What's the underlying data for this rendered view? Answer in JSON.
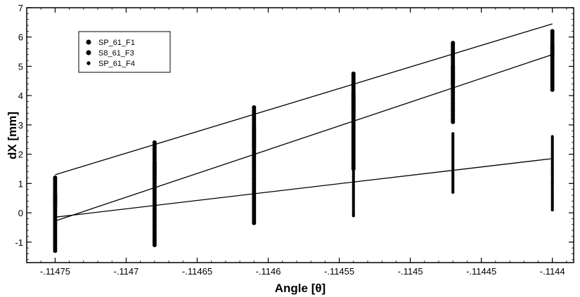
{
  "chart_data": {
    "type": "scatter",
    "title": "",
    "xlabel": "Angle [θ]",
    "ylabel": "dX [mm]",
    "xlim": [
      -0.11477,
      -0.114385
    ],
    "ylim": [
      -1.7,
      7
    ],
    "x_ticks": [
      -0.11475,
      -0.1147,
      -0.11465,
      -0.1146,
      -0.11455,
      -0.1145,
      -0.11445,
      -0.1144
    ],
    "x_tick_labels": [
      "-.11475",
      "-.1147",
      "-.11465",
      "-.1146",
      "-.11455",
      "-.1145",
      "-.11445",
      "-.1144"
    ],
    "y_ticks": [
      -1,
      0,
      1,
      2,
      3,
      4,
      5,
      6,
      7
    ],
    "y_tick_labels": [
      "-1",
      "0",
      "1",
      "2",
      "3",
      "4",
      "5",
      "6",
      "7"
    ],
    "grid": false,
    "legend_position": "top-left",
    "series": [
      {
        "name": "SP_61_F1",
        "marker": "circle",
        "ranges": [
          {
            "x": -0.11475,
            "min": 0.3,
            "max": 1.2
          },
          {
            "x": -0.11468,
            "min": 1.2,
            "max": 2.4
          },
          {
            "x": -0.11461,
            "min": 2.2,
            "max": 3.6
          },
          {
            "x": -0.11454,
            "min": 3.3,
            "max": 4.75
          },
          {
            "x": -0.11447,
            "min": 4.4,
            "max": 5.8
          },
          {
            "x": -0.1144,
            "min": 5.4,
            "max": 6.2
          }
        ],
        "fit": [
          {
            "x": -0.11475,
            "y": 1.3
          },
          {
            "x": -0.1144,
            "y": 6.45
          }
        ]
      },
      {
        "name": "S8_61_F3",
        "marker": "circle",
        "ranges": [
          {
            "x": -0.11475,
            "min": -1.3,
            "max": 0.6
          },
          {
            "x": -0.11468,
            "min": -1.1,
            "max": 1.7
          },
          {
            "x": -0.11461,
            "min": -0.35,
            "max": 2.9
          },
          {
            "x": -0.11454,
            "min": 1.5,
            "max": 4.1
          },
          {
            "x": -0.11447,
            "min": 3.1,
            "max": 5.0
          },
          {
            "x": -0.1144,
            "min": 4.2,
            "max": 5.7
          }
        ],
        "fit": [
          {
            "x": -0.11475,
            "y": -0.28
          },
          {
            "x": -0.1144,
            "y": 5.4
          }
        ]
      },
      {
        "name": "SP_61_F4",
        "marker": "small-circle",
        "ranges": [
          {
            "x": -0.11475,
            "min": -0.9,
            "max": 0.1
          },
          {
            "x": -0.11468,
            "min": -0.4,
            "max": 0.8
          },
          {
            "x": -0.11461,
            "min": 0.2,
            "max": 1.4
          },
          {
            "x": -0.11454,
            "min": -0.1,
            "max": 2.1
          },
          {
            "x": -0.11447,
            "min": 0.7,
            "max": 2.7
          },
          {
            "x": -0.1144,
            "min": 0.1,
            "max": 2.6
          }
        ],
        "fit": [
          {
            "x": -0.11475,
            "y": -0.15
          },
          {
            "x": -0.1144,
            "y": 1.85
          }
        ]
      }
    ]
  },
  "colors": {
    "marker": "#000000",
    "line": "#000000",
    "axis": "#000000",
    "background": "#ffffff"
  }
}
